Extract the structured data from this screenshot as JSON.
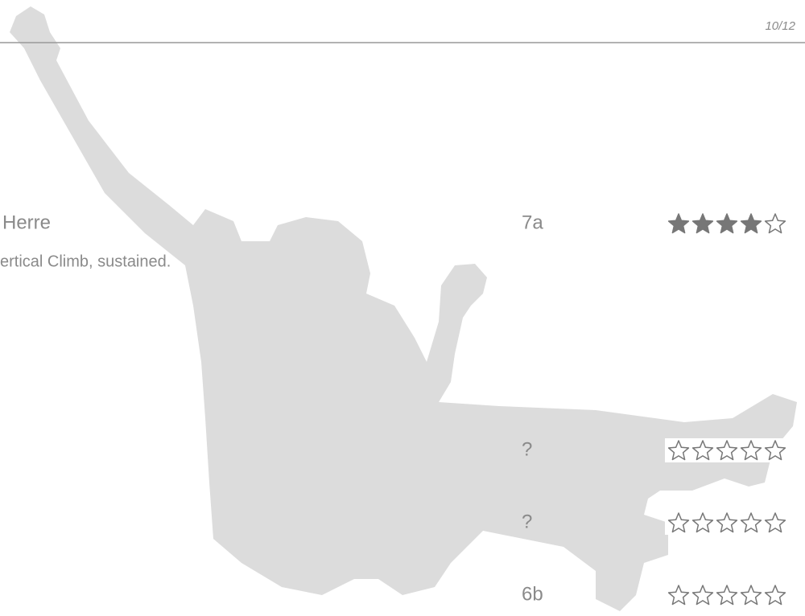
{
  "header": {
    "page": "10/12"
  },
  "stars_max": 5,
  "routes": [
    {
      "name": "Herre",
      "description": "ertical Climb, sustained.",
      "grade": "7a",
      "stars": 4
    },
    {
      "grade": "?",
      "stars": 0
    },
    {
      "grade": "?",
      "stars": 0
    },
    {
      "grade": "6b",
      "stars": 0
    }
  ]
}
